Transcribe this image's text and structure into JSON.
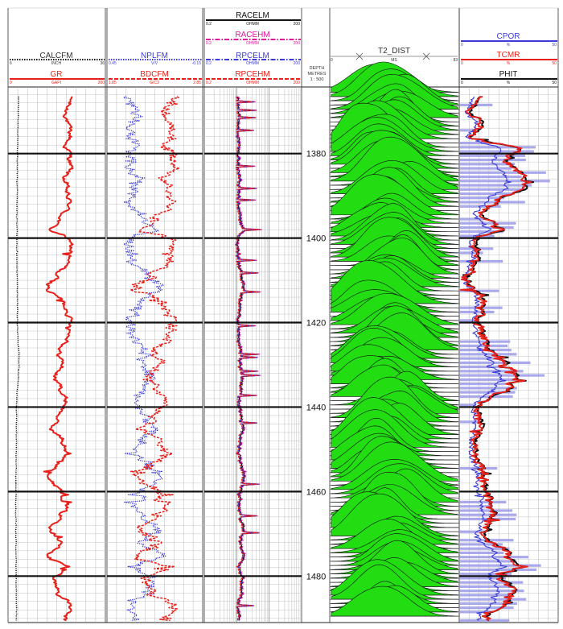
{
  "colors": {
    "red": "#e8201a",
    "blue": "#3b3bd9",
    "magenta": "#e0189a",
    "black": "#111111",
    "green": "#22dd11",
    "fill_blue": "#9a9ae8",
    "grid": "#9a9a9a"
  },
  "depth_track": {
    "title": "DEPTH",
    "unit": "METRES",
    "scale": "1 : 500",
    "range": [
      1365,
      1491
    ],
    "labels": [
      "1380",
      "1400",
      "1420",
      "1440",
      "1460",
      "1480"
    ]
  },
  "track1": {
    "curves": [
      {
        "name": "CALCFM",
        "unit": "INCH",
        "min": "6",
        "max": "36",
        "color": "#111111",
        "style": "dotted"
      },
      {
        "name": "GR",
        "unit": "GAPI",
        "min": "0",
        "max": "200",
        "color": "#e8201a",
        "style": "solid"
      }
    ]
  },
  "track2": {
    "curves": [
      {
        "name": "NPLFM",
        "unit": "V/V",
        "min": "0.45",
        "max": "-0.15",
        "color": "#3b3bd9",
        "style": "dotted"
      },
      {
        "name": "BDCFM",
        "unit": "G/C3",
        "min": "1.85",
        "max": "2.85",
        "color": "#e8201a",
        "style": "dashed"
      }
    ]
  },
  "track3": {
    "curves": [
      {
        "name": "RACELM",
        "unit": "OHMM",
        "min": "0.2",
        "max": "200",
        "color": "#111111",
        "style": "solid"
      },
      {
        "name": "RACEHM",
        "unit": "OHMM",
        "min": "0.2",
        "max": "200",
        "color": "#e0189a",
        "style": "dashdot"
      },
      {
        "name": "RPCELM",
        "unit": "OHMM",
        "min": "0.2",
        "max": "200",
        "color": "#3b3bd9",
        "style": "dashdot"
      },
      {
        "name": "RPCEHM",
        "unit": "OHMM",
        "min": "0.2",
        "max": "200",
        "color": "#e8201a",
        "style": "dashed"
      }
    ]
  },
  "track4": {
    "name": "T2_DIST",
    "unit": "MS",
    "min": "0",
    "max": "83"
  },
  "track5": {
    "curves": [
      {
        "name": "CPOR",
        "unit": "%",
        "min": "0",
        "max": "50",
        "color": "#3b3bd9",
        "style": "solid"
      },
      {
        "name": "TCMR",
        "unit": "%",
        "min": "0",
        "max": "50",
        "color": "#e8201a",
        "style": "solid"
      },
      {
        "name": "PHIT",
        "unit": "%",
        "min": "0",
        "max": "50",
        "color": "#111111",
        "style": "solid"
      }
    ]
  },
  "chart_data": {
    "type": "line",
    "y_axis": "depth (m)",
    "y_range": [
      1365,
      1491
    ],
    "series_depth_step_m": 0.5,
    "curves_read": [
      {
        "name": "GR",
        "unit": "GAPI",
        "range": [
          0,
          200
        ],
        "approx_values": [
          [
            1367,
            128
          ],
          [
            1370,
            120
          ],
          [
            1373,
            122
          ],
          [
            1376,
            128
          ],
          [
            1378,
            118
          ],
          [
            1380,
            126
          ],
          [
            1383,
            128
          ],
          [
            1386,
            116
          ],
          [
            1389,
            120
          ],
          [
            1392,
            126
          ],
          [
            1395,
            110
          ],
          [
            1398,
            88
          ],
          [
            1400,
            122
          ],
          [
            1403,
            130
          ],
          [
            1406,
            120
          ],
          [
            1409,
            98
          ],
          [
            1412,
            82
          ],
          [
            1415,
            112
          ],
          [
            1418,
            126
          ],
          [
            1421,
            130
          ],
          [
            1424,
            124
          ],
          [
            1427,
            104
          ],
          [
            1430,
            112
          ],
          [
            1433,
            96
          ],
          [
            1436,
            110
          ],
          [
            1439,
            120
          ],
          [
            1442,
            104
          ],
          [
            1445,
            90
          ],
          [
            1448,
            112
          ],
          [
            1451,
            118
          ],
          [
            1454,
            100
          ],
          [
            1457,
            84
          ],
          [
            1460,
            112
          ],
          [
            1463,
            120
          ],
          [
            1466,
            108
          ],
          [
            1469,
            92
          ],
          [
            1472,
            110
          ],
          [
            1475,
            84
          ],
          [
            1478,
            116
          ],
          [
            1481,
            96
          ],
          [
            1484,
            104
          ],
          [
            1487,
            128
          ],
          [
            1490,
            116
          ]
        ]
      },
      {
        "name": "CALCFM",
        "unit": "INCH",
        "range": [
          6,
          36
        ],
        "approx_values": [
          [
            1367,
            9.2
          ],
          [
            1380,
            8.9
          ],
          [
            1400,
            8.7
          ],
          [
            1420,
            8.9
          ],
          [
            1430,
            9.4
          ],
          [
            1440,
            8.6
          ],
          [
            1460,
            8.4
          ],
          [
            1480,
            8.5
          ],
          [
            1490,
            8.6
          ]
        ]
      },
      {
        "name": "PHIT",
        "unit": "%",
        "range": [
          0,
          50
        ],
        "approx_values": [
          [
            1367,
            10
          ],
          [
            1370,
            6
          ],
          [
            1373,
            12
          ],
          [
            1376,
            6
          ],
          [
            1379,
            30
          ],
          [
            1382,
            24
          ],
          [
            1385,
            32
          ],
          [
            1388,
            34
          ],
          [
            1391,
            20
          ],
          [
            1394,
            12
          ],
          [
            1397,
            18
          ],
          [
            1398,
            22
          ],
          [
            1400,
            8
          ],
          [
            1405,
            10
          ],
          [
            1410,
            4
          ],
          [
            1415,
            12
          ],
          [
            1420,
            10
          ],
          [
            1425,
            14
          ],
          [
            1430,
            24
          ],
          [
            1432,
            30
          ],
          [
            1435,
            26
          ],
          [
            1440,
            10
          ],
          [
            1445,
            12
          ],
          [
            1450,
            8
          ],
          [
            1455,
            12
          ],
          [
            1460,
            14
          ],
          [
            1465,
            18
          ],
          [
            1470,
            12
          ],
          [
            1475,
            26
          ],
          [
            1478,
            30
          ],
          [
            1480,
            20
          ],
          [
            1483,
            28
          ],
          [
            1486,
            24
          ],
          [
            1490,
            14
          ]
        ]
      }
    ]
  }
}
